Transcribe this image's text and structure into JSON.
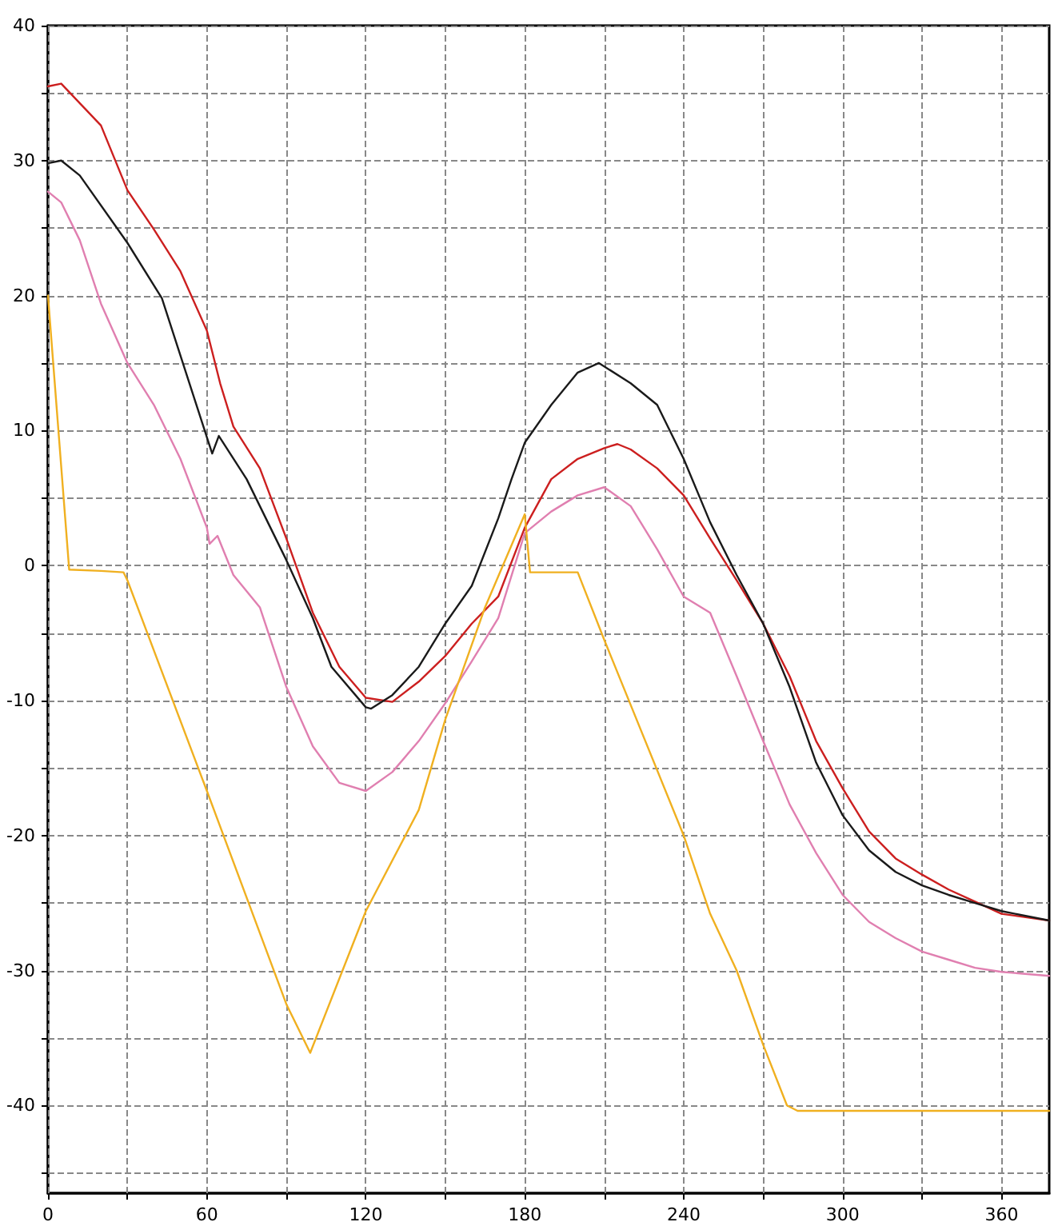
{
  "chart_data": {
    "type": "line",
    "xlim": [
      0,
      378
    ],
    "ylim": [
      -46.5,
      40
    ],
    "xticks": [
      0,
      {
        "value": 30,
        "label": null
      },
      60,
      {
        "value": 90,
        "label": null
      },
      120,
      {
        "value": 150,
        "label": null
      },
      180,
      {
        "value": 210,
        "label": null
      },
      240,
      {
        "value": 270,
        "label": null
      },
      300,
      {
        "value": 330,
        "label": null
      },
      360
    ],
    "yticks": [
      {
        "value": -45,
        "label": null
      },
      -40,
      {
        "value": -35,
        "label": null
      },
      -30,
      {
        "value": -25,
        "label": null
      },
      -20,
      {
        "value": -15,
        "label": null
      },
      -10,
      {
        "value": -5,
        "label": null
      },
      0,
      {
        "value": 5,
        "label": null
      },
      10,
      {
        "value": 15,
        "label": null
      },
      20,
      {
        "value": 25,
        "label": null
      },
      30,
      {
        "value": 35,
        "label": null
      },
      40
    ],
    "grid": true,
    "marker": "none",
    "line_style": "solid",
    "series": [
      {
        "color": "#cc1f1f",
        "x": [
          0,
          5,
          20,
          30,
          40,
          50,
          60,
          65,
          70,
          80,
          90,
          100,
          110,
          120,
          130,
          140,
          150,
          160,
          170,
          180,
          190,
          200,
          210,
          215,
          220,
          230,
          240,
          250,
          260,
          270,
          280,
          290,
          300,
          310,
          320,
          330,
          340,
          350,
          360,
          378
        ],
        "values": [
          35.5,
          35.7,
          32.6,
          27.8,
          24.9,
          21.8,
          17.4,
          13.5,
          10.3,
          7.2,
          2,
          -3.5,
          -7.5,
          -9.8,
          -10.1,
          -8.6,
          -6.7,
          -4.3,
          -2.3,
          2.8,
          6.4,
          7.9,
          8.7,
          9,
          8.6,
          7.2,
          5.2,
          2,
          -1.1,
          -4.3,
          -8.2,
          -13,
          -16.5,
          -19.7,
          -21.7,
          -22.9,
          -24,
          -24.9,
          -25.8,
          -26.3
        ]
      },
      {
        "color": "#1a1a1a",
        "x": [
          0,
          5,
          12,
          30,
          43,
          60,
          62,
          64.5,
          75,
          90,
          100,
          107,
          120,
          122,
          130,
          140,
          150,
          160,
          170,
          175,
          180,
          190,
          200,
          208,
          220,
          230,
          240,
          250,
          260,
          270,
          280,
          290,
          300,
          310,
          320,
          330,
          340,
          350,
          360,
          378
        ],
        "values": [
          29.8,
          30,
          28.9,
          23.9,
          19.8,
          9.5,
          8.3,
          9.6,
          6.4,
          0.4,
          -3.9,
          -7.5,
          -10.5,
          -10.6,
          -9.6,
          -7.5,
          -4.3,
          -1.5,
          3.5,
          6.4,
          9.1,
          11.9,
          14.3,
          15,
          13.5,
          11.9,
          7.9,
          3.2,
          -0.7,
          -4.3,
          -9,
          -14.6,
          -18.5,
          -21.1,
          -22.7,
          -23.7,
          -24.4,
          -25,
          -25.6,
          -26.3
        ]
      },
      {
        "color": "#e07fb0",
        "x": [
          0,
          5,
          12,
          20,
          30,
          40,
          50,
          60,
          61,
          64,
          70,
          80,
          90,
          100,
          110,
          120,
          130,
          140,
          150,
          160,
          170,
          180,
          190,
          200,
          210,
          220,
          230,
          240,
          250,
          260,
          270,
          280,
          290,
          300,
          310,
          320,
          330,
          340,
          350,
          360,
          378
        ],
        "values": [
          27.7,
          26.9,
          24.1,
          19.4,
          15,
          11.9,
          7.9,
          2.8,
          1.6,
          2.2,
          -0.7,
          -3.1,
          -9,
          -13.4,
          -16.1,
          -16.7,
          -15.3,
          -13,
          -10.2,
          -7.1,
          -3.9,
          2.4,
          4,
          5.2,
          5.8,
          4.4,
          1.2,
          -2.3,
          -3.5,
          -8.2,
          -13,
          -17.7,
          -21.3,
          -24.4,
          -26.4,
          -27.6,
          -28.6,
          -29.2,
          -29.8,
          -30.1,
          -30.4
        ]
      },
      {
        "color": "#f0b020",
        "x": [
          0,
          8,
          20,
          28.5,
          30,
          60,
          90,
          99,
          120,
          140,
          150,
          165,
          180,
          182,
          200,
          210,
          240,
          250,
          260,
          270,
          279,
          283,
          378
        ],
        "values": [
          20,
          -0.3,
          -0.4,
          -0.5,
          -1.1,
          -16.7,
          -32.5,
          -36.1,
          -25.6,
          -18.1,
          -11.4,
          -3.1,
          3.8,
          -0.5,
          -0.5,
          -5.5,
          -20,
          -25.8,
          -30,
          -35.5,
          -40,
          -40.4,
          -40.4
        ]
      }
    ]
  }
}
